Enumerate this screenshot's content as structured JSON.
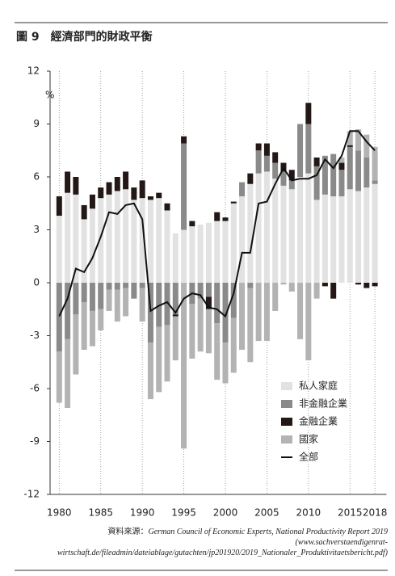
{
  "chart_data": {
    "type": "bar",
    "title": "圖 9　經濟部門的財政平衡",
    "y_label": "%",
    "x": [
      1980,
      1981,
      1982,
      1983,
      1984,
      1985,
      1986,
      1987,
      1988,
      1989,
      1990,
      1991,
      1992,
      1993,
      1994,
      1995,
      1996,
      1997,
      1998,
      1999,
      2000,
      2001,
      2002,
      2003,
      2004,
      2005,
      2006,
      2007,
      2008,
      2009,
      2010,
      2011,
      2012,
      2013,
      2014,
      2015,
      2016,
      2017,
      2018
    ],
    "xlim": [
      1978.9,
      2019.4
    ],
    "xticks": [
      1980,
      1985,
      1990,
      1995,
      2000,
      2005,
      2010,
      2015,
      2018
    ],
    "ylim": [
      -12,
      12
    ],
    "yticks": [
      12,
      9,
      6,
      3,
      0,
      -3,
      -6,
      -9,
      -12
    ],
    "grid": "x",
    "stacked": true,
    "series": [
      {
        "name": "私人家庭",
        "type": "bar",
        "color": "#e2e2e2",
        "values": [
          3.8,
          5.1,
          5.0,
          3.6,
          4.2,
          4.8,
          5.0,
          5.2,
          5.3,
          4.7,
          4.8,
          4.7,
          4.8,
          4.1,
          2.8,
          3.0,
          3.2,
          3.3,
          3.4,
          3.5,
          3.5,
          4.5,
          4.9,
          5.6,
          6.2,
          6.3,
          5.9,
          5.5,
          5.3,
          6.0,
          6.2,
          4.7,
          5.0,
          4.9,
          4.9,
          5.3,
          5.2,
          5.4,
          5.6
        ]
      },
      {
        "name": "非金融企業",
        "type": "bar",
        "color": "#8a8a8a",
        "values": [
          -3.9,
          -3.2,
          -1.8,
          -1.1,
          -1.6,
          -1.5,
          -0.4,
          -0.4,
          -0.3,
          -0.9,
          -0.3,
          -3.4,
          -2.5,
          -2.4,
          -1.8,
          4.9,
          -1.2,
          -0.9,
          -0.8,
          -2.3,
          -3.4,
          -2.0,
          0.8,
          -0.3,
          1.3,
          0.9,
          0.9,
          0.8,
          0.5,
          3.0,
          2.8,
          1.9,
          2.2,
          2.4,
          1.5,
          2.4,
          2.3,
          1.7,
          0.2
        ]
      },
      {
        "name": "金融企業",
        "type": "bar",
        "color": "#231815",
        "values": [
          1.1,
          1.2,
          1.0,
          0.8,
          0.8,
          0.6,
          0.7,
          0.8,
          1.0,
          0.7,
          1.0,
          0.2,
          0.3,
          0.4,
          -0.1,
          0.4,
          0.3,
          0.0,
          -0.7,
          0.5,
          0.2,
          0.1,
          0.0,
          0.6,
          0.4,
          0.7,
          0.6,
          0.5,
          0.6,
          0.0,
          1.2,
          0.5,
          -0.2,
          -0.9,
          0.4,
          0.1,
          -0.1,
          -0.3,
          -0.2
        ]
      },
      {
        "name": "國家",
        "type": "bar",
        "color": "#b3b3b3",
        "values": [
          -2.9,
          -3.9,
          -3.4,
          -2.7,
          -2.0,
          -1.2,
          -1.2,
          -1.8,
          -1.6,
          0.0,
          -1.9,
          -3.2,
          -3.7,
          -3.2,
          -2.5,
          -9.4,
          -3.1,
          -3.0,
          -2.5,
          -3.2,
          -2.3,
          -3.1,
          -3.8,
          -4.2,
          -3.3,
          -3.3,
          -1.6,
          -0.1,
          -0.5,
          -3.2,
          -4.4,
          -0.9,
          0.0,
          0.0,
          0.3,
          0.8,
          1.2,
          1.3,
          1.9
        ]
      },
      {
        "name": "全部",
        "type": "line",
        "color": "#111111",
        "values": [
          -1.9,
          -0.9,
          0.8,
          0.6,
          1.4,
          2.6,
          4.0,
          3.9,
          4.4,
          4.5,
          3.6,
          -1.6,
          -1.3,
          -1.1,
          -1.7,
          -0.9,
          -0.6,
          -0.7,
          -1.4,
          -1.5,
          -1.9,
          -0.6,
          1.7,
          1.7,
          4.5,
          4.6,
          5.6,
          6.5,
          5.8,
          5.9,
          5.9,
          6.1,
          7.0,
          6.5,
          7.2,
          8.6,
          8.6,
          8.0,
          7.5
        ]
      }
    ],
    "source_label": "資料來源：",
    "source": "German Council of Economic Experts, National Productivity Report 2019 (www.sachverstaendigenrat-wirtschaft.de/fileadmin/dateiablage/gutachten/jp201920/2019_Nationaler_Produktivitaetsbericht.pdf)"
  }
}
